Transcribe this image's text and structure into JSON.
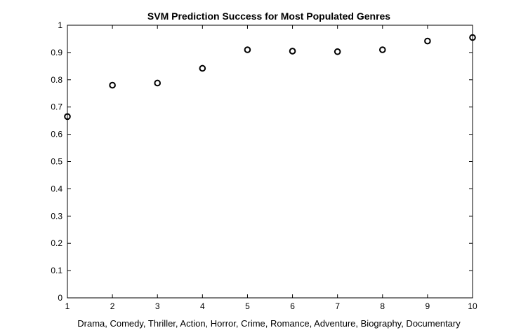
{
  "chart_data": {
    "type": "scatter",
    "title": "SVM Prediction Success for Most Populated Genres",
    "xlabel": "Drama, Comedy, Thriller, Action, Horror, Crime, Romance, Adventure, Biography, Documentary",
    "ylabel": "",
    "xlim": [
      1,
      10
    ],
    "ylim": [
      0,
      1
    ],
    "xticks": [
      "1",
      "2",
      "3",
      "4",
      "5",
      "6",
      "7",
      "8",
      "9",
      "10"
    ],
    "yticks": [
      "0",
      "0.1",
      "0.2",
      "0.3",
      "0.4",
      "0.5",
      "0.6",
      "0.7",
      "0.8",
      "0.9",
      "1"
    ],
    "grid": false,
    "marker": "circle-open",
    "marker_color": "#000000",
    "x": [
      1,
      2,
      3,
      4,
      5,
      6,
      7,
      8,
      9,
      10
    ],
    "y": [
      0.665,
      0.78,
      0.788,
      0.842,
      0.91,
      0.905,
      0.903,
      0.91,
      0.942,
      0.955
    ]
  }
}
